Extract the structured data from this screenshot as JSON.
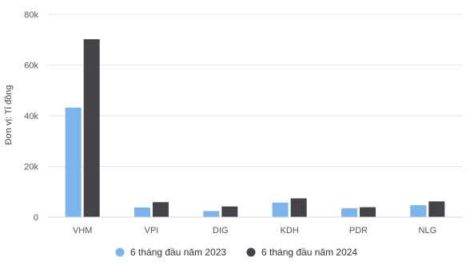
{
  "chart_data": {
    "type": "bar",
    "ylabel": "Đơn vị: Tỉ đồng",
    "categories": [
      "VHM",
      "VPI",
      "DIG",
      "KDH",
      "PDR",
      "NLG"
    ],
    "yticks": [
      "0",
      "20k",
      "40k",
      "60k",
      "80k"
    ],
    "ylim": [
      0,
      80000
    ],
    "grid": true,
    "legend_position": "bottom-center",
    "series": [
      {
        "name": "6 tháng đầu năm 2023",
        "color": "#7cb5ec",
        "values": [
          43200,
          3800,
          2400,
          5700,
          3500,
          4700
        ]
      },
      {
        "name": "6 tháng đầu năm 2024",
        "color": "#434348",
        "values": [
          70200,
          5900,
          4200,
          7400,
          3900,
          6200
        ]
      }
    ]
  }
}
